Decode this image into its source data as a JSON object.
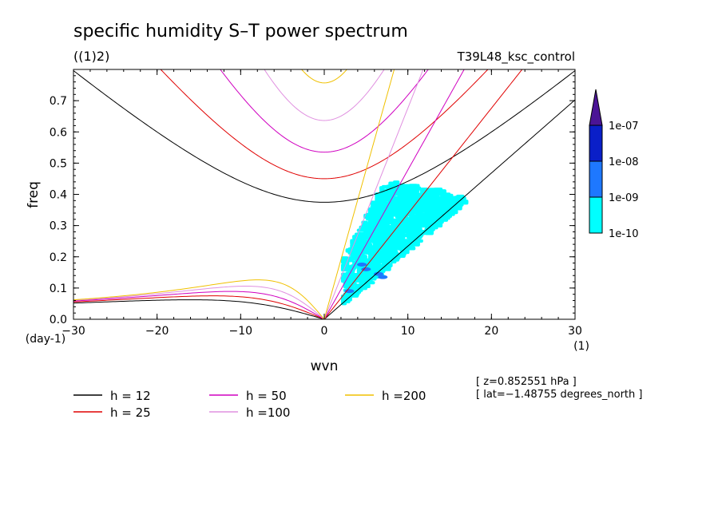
{
  "chart_data": {
    "type": "contour",
    "title": "specific humidity S–T power spectrum",
    "subtitle_left": "((1)2)",
    "subtitle_right": "T39L48_ksc_control",
    "xlabel": "wvn",
    "ylabel": "freq",
    "x_unit": "(1)",
    "y_unit": "(day-1)",
    "xlim": [
      -30,
      30
    ],
    "ylim": [
      0,
      0.8
    ],
    "x_ticks": [
      -30,
      -20,
      -10,
      0,
      10,
      20,
      30
    ],
    "x_tick_labels": [
      "−30",
      "−20",
      "−10",
      "0",
      "10",
      "20",
      "30"
    ],
    "y_ticks": [
      0,
      0.1,
      0.2,
      0.3,
      0.4,
      0.5,
      0.6,
      0.7
    ],
    "y_tick_labels": [
      "0.0",
      "0.1",
      "0.2",
      "0.3",
      "0.4",
      "0.5",
      "0.6",
      "0.7"
    ],
    "colorbar": {
      "levels": [
        "1e-10",
        "1e-09",
        "1e-08",
        "1e-07"
      ],
      "colors": [
        "#00ffff",
        "#1e78ff",
        "#0a1fc8",
        "#4b1496"
      ]
    },
    "dispersion_curves": [
      {
        "label": "h = 12",
        "h": 12,
        "color": "#000000"
      },
      {
        "label": "h = 25",
        "h": 25,
        "color": "#e00000"
      },
      {
        "label": "h = 50",
        "h": 50,
        "color": "#d000c0"
      },
      {
        "label": "h =100",
        "h": 100,
        "color": "#e090e0"
      },
      {
        "label": "h =200",
        "h": 200,
        "color": "#f0c000"
      }
    ],
    "annotations": [
      "[ z=0.852551 hPa ]",
      "[ lat=−1.48755 degrees_north ]"
    ]
  }
}
